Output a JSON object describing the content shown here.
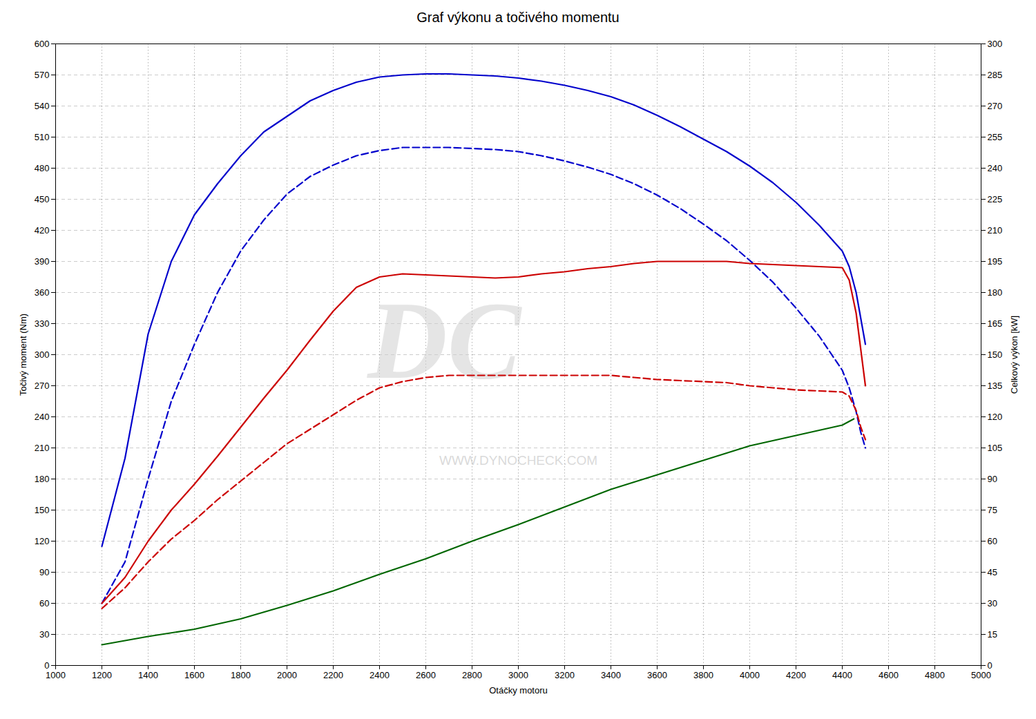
{
  "chart_data": {
    "type": "line",
    "title": "Graf výkonu a točivého momentu",
    "xlabel": "Otáčky motoru",
    "ylabel": "Točivý moment (Nm)",
    "y2label": "Celkový výkon [kW]",
    "xlim": [
      1000,
      5000
    ],
    "ylim": [
      0,
      600
    ],
    "y2lim": [
      0,
      300
    ],
    "xticks": [
      1000,
      1200,
      1400,
      1600,
      1800,
      2000,
      2200,
      2400,
      2600,
      2800,
      3000,
      3200,
      3400,
      3600,
      3800,
      4000,
      4200,
      4400,
      4600,
      4800,
      5000
    ],
    "yticks": [
      0,
      30,
      60,
      90,
      120,
      150,
      180,
      210,
      240,
      270,
      300,
      330,
      360,
      390,
      420,
      450,
      480,
      510,
      540,
      570,
      600
    ],
    "y2ticks": [
      0,
      15,
      30,
      45,
      60,
      75,
      90,
      105,
      120,
      135,
      150,
      165,
      180,
      195,
      210,
      225,
      240,
      255,
      270,
      285,
      300
    ],
    "grid": true,
    "series": [
      {
        "color": "#0000cc",
        "line_style": "solid",
        "x": [
          1200,
          1300,
          1400,
          1500,
          1600,
          1700,
          1800,
          1900,
          2000,
          2100,
          2200,
          2300,
          2400,
          2500,
          2600,
          2700,
          2800,
          2900,
          3000,
          3100,
          3200,
          3300,
          3400,
          3500,
          3600,
          3700,
          3800,
          3900,
          4000,
          4100,
          4200,
          4300,
          4400,
          4430,
          4460,
          4480,
          4500
        ],
        "values": [
          115,
          200,
          320,
          390,
          435,
          465,
          492,
          515,
          530,
          545,
          555,
          563,
          568,
          570,
          571,
          571,
          570,
          569,
          567,
          564,
          560,
          555,
          549,
          541,
          531,
          520,
          508,
          496,
          482,
          466,
          447,
          425,
          400,
          385,
          360,
          335,
          310
        ]
      },
      {
        "color": "#0000cc",
        "line_style": "dashed",
        "x": [
          1200,
          1300,
          1400,
          1500,
          1600,
          1700,
          1800,
          1900,
          2000,
          2100,
          2200,
          2300,
          2400,
          2500,
          2600,
          2700,
          2800,
          2900,
          3000,
          3100,
          3200,
          3300,
          3400,
          3500,
          3600,
          3700,
          3800,
          3900,
          4000,
          4100,
          4200,
          4300,
          4400,
          4430,
          4460,
          4480,
          4500
        ],
        "values": [
          60,
          100,
          180,
          255,
          310,
          360,
          400,
          430,
          455,
          472,
          483,
          492,
          497,
          500,
          500,
          500,
          499,
          498,
          496,
          492,
          487,
          481,
          474,
          465,
          454,
          441,
          426,
          410,
          391,
          370,
          345,
          318,
          285,
          268,
          245,
          225,
          210
        ]
      },
      {
        "color": "#cc0000",
        "line_style": "solid",
        "x": [
          1200,
          1300,
          1400,
          1500,
          1600,
          1700,
          1800,
          1900,
          2000,
          2100,
          2200,
          2300,
          2400,
          2500,
          2600,
          2700,
          2800,
          2900,
          3000,
          3100,
          3200,
          3300,
          3400,
          3500,
          3600,
          3700,
          3800,
          3900,
          4000,
          4100,
          4200,
          4300,
          4400,
          4430,
          4460,
          4480,
          4500
        ],
        "values": [
          60,
          85,
          120,
          150,
          175,
          202,
          230,
          258,
          285,
          314,
          342,
          365,
          375,
          378,
          377,
          376,
          375,
          374,
          375,
          378,
          380,
          383,
          385,
          388,
          390,
          390,
          390,
          390,
          388,
          387,
          386,
          385,
          384,
          372,
          340,
          305,
          270
        ]
      },
      {
        "color": "#cc0000",
        "line_style": "dashed",
        "x": [
          1200,
          1300,
          1400,
          1500,
          1600,
          1700,
          1800,
          1900,
          2000,
          2100,
          2200,
          2300,
          2400,
          2500,
          2600,
          2700,
          2800,
          2900,
          3000,
          3100,
          3200,
          3300,
          3400,
          3500,
          3600,
          3700,
          3800,
          3900,
          4000,
          4100,
          4200,
          4300,
          4400,
          4430,
          4460,
          4480,
          4500
        ],
        "values": [
          55,
          75,
          100,
          122,
          140,
          160,
          178,
          196,
          214,
          228,
          242,
          256,
          268,
          274,
          278,
          280,
          280,
          280,
          280,
          280,
          280,
          280,
          280,
          278,
          276,
          275,
          274,
          273,
          270,
          268,
          266,
          265,
          264,
          260,
          246,
          230,
          218
        ]
      },
      {
        "color": "#006600",
        "line_style": "solid",
        "x": [
          1200,
          1400,
          1600,
          1800,
          2000,
          2200,
          2400,
          2600,
          2800,
          3000,
          3200,
          3400,
          3600,
          3800,
          4000,
          4200,
          4400,
          4450
        ],
        "values": [
          20,
          28,
          35,
          45,
          58,
          72,
          88,
          103,
          120,
          136,
          153,
          170,
          184,
          198,
          212,
          222,
          232,
          238
        ]
      }
    ],
    "annotations": [
      {
        "text": "DC"
      },
      {
        "text": "WWW.DYNOCHECK.COM"
      }
    ]
  }
}
